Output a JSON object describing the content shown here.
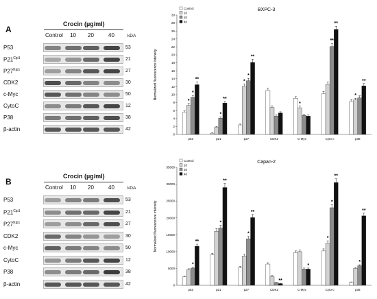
{
  "panelA": {
    "label": "A",
    "title": "Crocin (µg/ml)",
    "conditions": [
      "Control",
      "10",
      "20",
      "40"
    ],
    "kda": "kDA",
    "rows": [
      {
        "main": "P53",
        "sup": "",
        "mw": "53",
        "intensity": [
          0.55,
          0.65,
          0.75,
          0.9
        ]
      },
      {
        "main": "P21",
        "sup": "Cip1",
        "mw": "21",
        "intensity": [
          0.35,
          0.45,
          0.7,
          0.9
        ]
      },
      {
        "main": "P27",
        "sup": "Kip1",
        "mw": "27",
        "intensity": [
          0.4,
          0.55,
          0.8,
          0.9
        ]
      },
      {
        "main": "CDK2",
        "sup": "",
        "mw": "30",
        "intensity": [
          0.85,
          0.7,
          0.55,
          0.5
        ]
      },
      {
        "main": "c-Myc",
        "sup": "",
        "mw": "50",
        "intensity": [
          0.8,
          0.65,
          0.55,
          0.5
        ]
      },
      {
        "main": "CytoC",
        "sup": "",
        "mw": "12",
        "intensity": [
          0.5,
          0.6,
          0.8,
          0.9
        ]
      },
      {
        "main": "P38",
        "sup": "",
        "mw": "38",
        "intensity": [
          0.6,
          0.65,
          0.75,
          0.85
        ]
      },
      {
        "main": "β-actin",
        "sup": "",
        "mw": "42",
        "intensity": [
          0.8,
          0.8,
          0.8,
          0.8
        ]
      }
    ]
  },
  "panelB": {
    "label": "B",
    "title": "Crocin (µg/ml)",
    "conditions": [
      "Control",
      "10",
      "20",
      "40"
    ],
    "kda": "kDA",
    "rows": [
      {
        "main": "P53",
        "sup": "",
        "mw": "53",
        "intensity": [
          0.4,
          0.55,
          0.6,
          0.85
        ]
      },
      {
        "main": "P21",
        "sup": "Cip1",
        "mw": "21",
        "intensity": [
          0.5,
          0.65,
          0.7,
          0.9
        ]
      },
      {
        "main": "P27",
        "sup": "Kip1",
        "mw": "27",
        "intensity": [
          0.4,
          0.5,
          0.7,
          0.85
        ]
      },
      {
        "main": "CDK2",
        "sup": "",
        "mw": "30",
        "intensity": [
          0.7,
          0.55,
          0.45,
          0.4
        ]
      },
      {
        "main": "c-Myc",
        "sup": "",
        "mw": "50",
        "intensity": [
          0.75,
          0.6,
          0.55,
          0.5
        ]
      },
      {
        "main": "CytoC",
        "sup": "",
        "mw": "12",
        "intensity": [
          0.45,
          0.6,
          0.8,
          0.9
        ]
      },
      {
        "main": "P38",
        "sup": "",
        "mw": "38",
        "intensity": [
          0.5,
          0.6,
          0.7,
          0.95
        ]
      },
      {
        "main": "β-actin",
        "sup": "",
        "mw": "42",
        "intensity": [
          0.8,
          0.8,
          0.8,
          0.8
        ]
      }
    ]
  },
  "series_colors": [
    "#ffffff",
    "#d2d2d2",
    "#8c8c8c",
    "#111111"
  ],
  "chart_data": [
    {
      "type": "bar",
      "title": "BXPC-3",
      "ylabel": "Normalized fluorescence intensity",
      "xlabel": "",
      "ylim": [
        0,
        30
      ],
      "yticks": [
        0,
        2,
        4,
        6,
        8,
        10,
        12,
        14,
        16,
        18,
        20,
        22,
        24,
        26,
        28,
        30
      ],
      "categories": [
        "p53",
        "p21",
        "p27",
        "CDK2",
        "C-Myc",
        "Cyto-c",
        "p38"
      ],
      "legend_position": "top-left",
      "series": [
        {
          "name": "Control",
          "values": [
            5.6,
            0.3,
            2.4,
            11.1,
            9.1,
            10.2,
            8.3
          ]
        },
        {
          "name": "10",
          "values": [
            7.3,
            1.8,
            12.1,
            6.8,
            6.7,
            12.6,
            8.7
          ]
        },
        {
          "name": "20",
          "values": [
            9.3,
            4.1,
            13.5,
            4.6,
            4.8,
            22.1,
            9.2
          ]
        },
        {
          "name": "40",
          "values": [
            12.5,
            7.9,
            18.1,
            5.4,
            4.6,
            26.4,
            12.2
          ]
        }
      ],
      "errors": [
        [
          0.3,
          0.1,
          0.2,
          0.5,
          0.4,
          0.6,
          0.4
        ],
        [
          0.5,
          0.2,
          0.6,
          0.4,
          0.4,
          0.6,
          0.4
        ],
        [
          0.5,
          0.3,
          0.6,
          0.3,
          0.3,
          0.8,
          0.5
        ],
        [
          0.7,
          0.4,
          0.8,
          0.3,
          0.3,
          0.8,
          0.6
        ]
      ],
      "annotations": [
        {
          "category": 0,
          "series": 1,
          "text": "*"
        },
        {
          "category": 0,
          "series": 2,
          "text": "*"
        },
        {
          "category": 0,
          "series": 3,
          "text": "**"
        },
        {
          "category": 1,
          "series": 2,
          "text": "*"
        },
        {
          "category": 1,
          "series": 3,
          "text": "**"
        },
        {
          "category": 2,
          "series": 1,
          "text": "*"
        },
        {
          "category": 2,
          "series": 2,
          "text": "*"
        },
        {
          "category": 2,
          "series": 3,
          "text": "**"
        },
        {
          "category": 4,
          "series": 1,
          "text": "*"
        },
        {
          "category": 5,
          "series": 2,
          "text": "**"
        },
        {
          "category": 5,
          "series": 3,
          "text": "**"
        },
        {
          "category": 6,
          "series": 1,
          "text": "*"
        },
        {
          "category": 6,
          "series": 3,
          "text": "**"
        }
      ]
    },
    {
      "type": "bar",
      "title": "Capan-2",
      "ylabel": "Normalized fluorescence intensity",
      "xlabel": "",
      "ylim": [
        0,
        35000
      ],
      "yticks": [
        0,
        5000,
        10000,
        15000,
        20000,
        25000,
        30000,
        35000
      ],
      "categories": [
        "p53",
        "p21",
        "p27",
        "CDK2",
        "C-Myc",
        "Cyto-c",
        "p38"
      ],
      "legend_position": "top-left",
      "series": [
        {
          "name": "Control",
          "values": [
            2500,
            9000,
            5200,
            6300,
            9700,
            10200,
            900
          ]
        },
        {
          "name": "10",
          "values": [
            4600,
            16000,
            8700,
            2600,
            10000,
            12500,
            5000
          ]
        },
        {
          "name": "20",
          "values": [
            5100,
            17000,
            13800,
            800,
            4800,
            23000,
            5800
          ]
        },
        {
          "name": "40",
          "values": [
            11600,
            29000,
            20100,
            500,
            4800,
            30500,
            20600
          ]
        }
      ],
      "errors": [
        [
          200,
          500,
          400,
          400,
          500,
          600,
          100
        ],
        [
          300,
          800,
          500,
          300,
          500,
          700,
          300
        ],
        [
          300,
          800,
          700,
          100,
          300,
          900,
          300
        ],
        [
          600,
          1200,
          900,
          100,
          300,
          1100,
          800
        ]
      ],
      "annotations": [
        {
          "category": 0,
          "series": 2,
          "text": "*"
        },
        {
          "category": 0,
          "series": 3,
          "text": "**"
        },
        {
          "category": 1,
          "series": 2,
          "text": "*"
        },
        {
          "category": 1,
          "series": 3,
          "text": "**"
        },
        {
          "category": 2,
          "series": 2,
          "text": "*"
        },
        {
          "category": 2,
          "series": 3,
          "text": "**"
        },
        {
          "category": 3,
          "series": 3,
          "text": "**"
        },
        {
          "category": 4,
          "series": 3,
          "text": "*"
        },
        {
          "category": 5,
          "series": 1,
          "text": "*"
        },
        {
          "category": 5,
          "series": 2,
          "text": "*"
        },
        {
          "category": 5,
          "series": 3,
          "text": "**"
        },
        {
          "category": 6,
          "series": 2,
          "text": "*"
        },
        {
          "category": 6,
          "series": 3,
          "text": "**"
        }
      ]
    }
  ]
}
